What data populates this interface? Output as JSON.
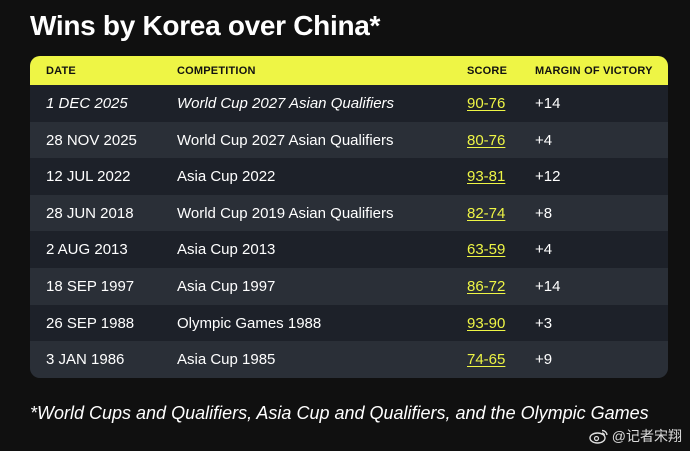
{
  "title": "Wins by Korea over China*",
  "table": {
    "headers": {
      "date": "DATE",
      "competition": "COMPETITION",
      "score": "SCORE",
      "margin": "MARGIN OF VICTORY"
    },
    "rows": [
      {
        "date": "1 DEC 2025",
        "competition": "World Cup 2027 Asian Qualifiers",
        "score": "90-76",
        "margin": "+14"
      },
      {
        "date": "28 NOV 2025",
        "competition": "World Cup 2027 Asian Qualifiers",
        "score": "80-76",
        "margin": "+4"
      },
      {
        "date": "12 JUL 2022",
        "competition": "Asia Cup 2022",
        "score": "93-81",
        "margin": "+12"
      },
      {
        "date": "28 JUN 2018",
        "competition": "World Cup 2019 Asian Qualifiers",
        "score": "82-74",
        "margin": "+8"
      },
      {
        "date": "2 AUG 2013",
        "competition": "Asia Cup 2013",
        "score": "63-59",
        "margin": "+4"
      },
      {
        "date": "18 SEP 1997",
        "competition": "Asia Cup 1997",
        "score": "86-72",
        "margin": "+14"
      },
      {
        "date": "26 SEP 1988",
        "competition": "Olympic Games 1988",
        "score": "93-90",
        "margin": "+3"
      },
      {
        "date": "3 JAN 1986",
        "competition": "Asia Cup 1985",
        "score": "74-65",
        "margin": "+9"
      }
    ]
  },
  "footnote": "*World Cups and Qualifiers, Asia Cup and Qualifiers, and the Olympic Games",
  "watermark": {
    "icon": "weibo-icon",
    "text": "@记者宋翔"
  },
  "colors": {
    "accent": "#eef545",
    "background": "#101010",
    "table_bg": "#1d2129",
    "table_alt": "#2a2f37"
  }
}
